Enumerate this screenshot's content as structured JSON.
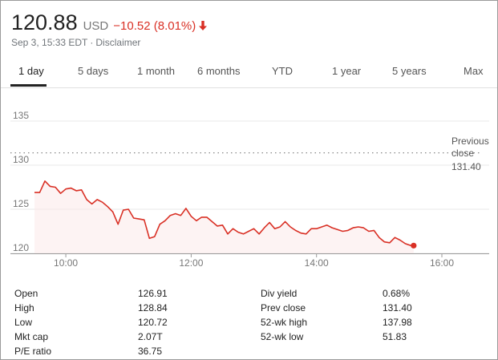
{
  "quote": {
    "price": "120.88",
    "currency": "USD",
    "change": "−10.52 (8.01%)",
    "timestamp": "Sep 3, 15:33 EDT",
    "separator": "·",
    "disclaimer": "Disclaimer"
  },
  "tabs": [
    {
      "label": "1 day",
      "active": true
    },
    {
      "label": "5 days"
    },
    {
      "label": "1 month"
    },
    {
      "label": "6 months"
    },
    {
      "label": "YTD"
    },
    {
      "label": "1 year"
    },
    {
      "label": "5 years"
    },
    {
      "label": "Max"
    }
  ],
  "colors": {
    "line": "#d93025",
    "fill": "#fbeaea",
    "grid": "#e8e8e8",
    "axis": "#777777"
  },
  "chart_data": {
    "type": "line",
    "x": [
      "09:30",
      "09:35",
      "09:40",
      "09:45",
      "09:50",
      "09:55",
      "10:00",
      "10:05",
      "10:10",
      "10:15",
      "10:20",
      "10:25",
      "10:30",
      "10:35",
      "10:40",
      "10:45",
      "10:50",
      "10:55",
      "11:00",
      "11:05",
      "11:10",
      "11:15",
      "11:20",
      "11:25",
      "11:30",
      "11:35",
      "11:40",
      "11:45",
      "11:50",
      "11:55",
      "12:00",
      "12:05",
      "12:10",
      "12:15",
      "12:20",
      "12:25",
      "12:30",
      "12:35",
      "12:40",
      "12:45",
      "12:50",
      "12:55",
      "13:00",
      "13:05",
      "13:10",
      "13:15",
      "13:20",
      "13:25",
      "13:30",
      "13:35",
      "13:40",
      "13:45",
      "13:50",
      "13:55",
      "14:00",
      "14:05",
      "14:10",
      "14:15",
      "14:20",
      "14:25",
      "14:30",
      "14:35",
      "14:40",
      "14:45",
      "14:50",
      "14:55",
      "15:00",
      "15:05",
      "15:10",
      "15:15",
      "15:20",
      "15:25",
      "15:30",
      "15:33"
    ],
    "y": [
      126.9,
      126.9,
      128.2,
      127.6,
      127.5,
      126.8,
      127.3,
      127.4,
      127.1,
      127.2,
      126.1,
      125.6,
      126.1,
      125.8,
      125.3,
      124.7,
      123.3,
      124.9,
      125.0,
      124.0,
      123.9,
      123.8,
      121.7,
      121.9,
      123.3,
      123.7,
      124.3,
      124.5,
      124.3,
      125.1,
      124.2,
      123.7,
      124.1,
      124.1,
      123.6,
      123.1,
      123.2,
      122.2,
      122.8,
      122.4,
      122.2,
      122.5,
      122.8,
      122.2,
      122.9,
      123.5,
      122.8,
      123.0,
      123.6,
      123.0,
      122.6,
      122.3,
      122.2,
      122.8,
      122.8,
      123.0,
      123.2,
      122.9,
      122.7,
      122.5,
      122.6,
      122.9,
      123.0,
      122.9,
      122.5,
      122.6,
      121.8,
      121.3,
      121.2,
      121.8,
      121.5,
      121.1,
      120.9,
      120.88
    ],
    "x_ticks": [
      "10:00",
      "12:00",
      "14:00",
      "16:00"
    ],
    "y_ticks": [
      120,
      125,
      130,
      135
    ],
    "xlim": [
      "09:30",
      "16:00"
    ],
    "ylim": [
      119.5,
      137
    ],
    "reference": {
      "label_line1": "Previous",
      "label_line2": "close",
      "value": 131.4,
      "value_label": "131.40"
    },
    "grid": true,
    "title": "",
    "xlabel": "",
    "ylabel": ""
  },
  "stats": {
    "left": [
      {
        "label": "Open",
        "value": "126.91"
      },
      {
        "label": "High",
        "value": "128.84"
      },
      {
        "label": "Low",
        "value": "120.72"
      },
      {
        "label": "Mkt cap",
        "value": "2.07T"
      },
      {
        "label": "P/E ratio",
        "value": "36.75"
      }
    ],
    "right": [
      {
        "label": "Div yield",
        "value": "0.68%"
      },
      {
        "label": "Prev close",
        "value": "131.40"
      },
      {
        "label": "52-wk high",
        "value": "137.98"
      },
      {
        "label": "52-wk low",
        "value": "51.83"
      }
    ]
  }
}
